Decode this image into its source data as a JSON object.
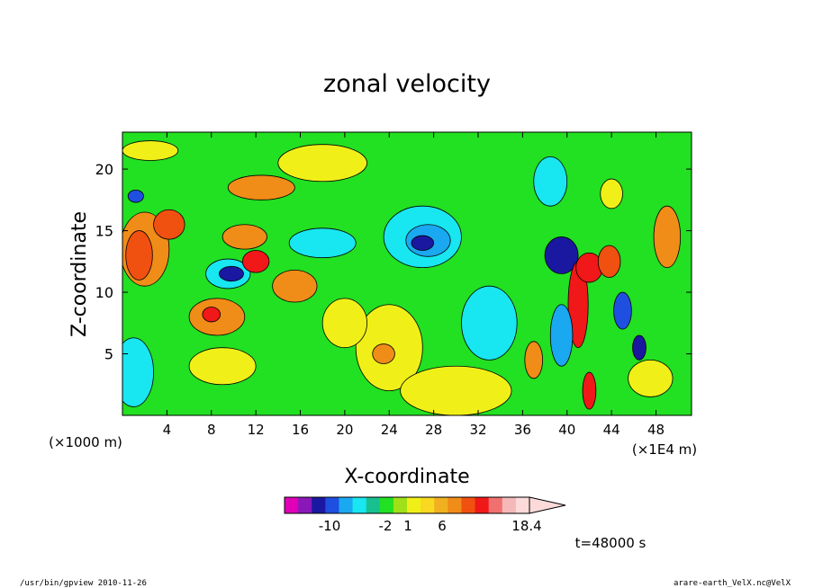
{
  "chart_data": {
    "type": "heatmap",
    "title": "zonal velocity",
    "xlabel": "X-coordinate",
    "ylabel": "Z-coordinate",
    "x_unit_left": "(×1000 m)",
    "x_unit_right": "(×1E4 m)",
    "xlim": [
      0,
      51.2
    ],
    "ylim": [
      0,
      23
    ],
    "x_ticks": [
      4,
      8,
      12,
      16,
      20,
      24,
      28,
      32,
      36,
      40,
      44,
      48
    ],
    "y_ticks": [
      5,
      10,
      15,
      20
    ],
    "colorbar": {
      "colors": [
        "#e000b8",
        "#8a18b8",
        "#1a18a0",
        "#1f4fe0",
        "#1aa8f0",
        "#18e6f0",
        "#18c090",
        "#22e022",
        "#a0e018",
        "#f0f018",
        "#f8d820",
        "#f0b020",
        "#f08c18",
        "#f05010",
        "#f01818",
        "#f07070",
        "#f4b8b8",
        "#fcdada"
      ],
      "labels": [
        "-10",
        "-2",
        "1",
        "6",
        "18.4"
      ]
    },
    "time_label": "t=48000  s",
    "contour_field": {
      "background_level": 1,
      "blobs": [
        {
          "x": 2.0,
          "z": 13.5,
          "rx": 2.2,
          "rz": 3.0,
          "level": 4
        },
        {
          "x": 1.5,
          "z": 13.0,
          "rx": 1.2,
          "rz": 2.0,
          "level": 6
        },
        {
          "x": 4.2,
          "z": 15.5,
          "rx": 1.4,
          "rz": 1.2,
          "level": 6
        },
        {
          "x": 1.0,
          "z": 3.5,
          "rx": 1.8,
          "rz": 2.8,
          "level": -2
        },
        {
          "x": 1.2,
          "z": 17.8,
          "rx": 0.7,
          "rz": 0.5,
          "level": -6
        },
        {
          "x": 9.5,
          "z": 11.5,
          "rx": 2.0,
          "rz": 1.2,
          "level": -2
        },
        {
          "x": 9.8,
          "z": 11.5,
          "rx": 1.1,
          "rz": 0.6,
          "level": -8
        },
        {
          "x": 8.5,
          "z": 8.0,
          "rx": 2.5,
          "rz": 1.5,
          "level": 4
        },
        {
          "x": 8.0,
          "z": 8.2,
          "rx": 0.8,
          "rz": 0.6,
          "level": 8
        },
        {
          "x": 11.0,
          "z": 14.5,
          "rx": 2.0,
          "rz": 1.0,
          "level": 4
        },
        {
          "x": 12.0,
          "z": 12.5,
          "rx": 1.2,
          "rz": 0.9,
          "level": 8
        },
        {
          "x": 12.5,
          "z": 18.5,
          "rx": 3.0,
          "rz": 1.0,
          "level": 4
        },
        {
          "x": 18.0,
          "z": 14.0,
          "rx": 3.0,
          "rz": 1.2,
          "level": -2
        },
        {
          "x": 15.5,
          "z": 10.5,
          "rx": 2.0,
          "rz": 1.3,
          "level": 4
        },
        {
          "x": 9.0,
          "z": 4.0,
          "rx": 3.0,
          "rz": 1.5,
          "level": 2
        },
        {
          "x": 27.0,
          "z": 14.5,
          "rx": 3.5,
          "rz": 2.5,
          "level": -2
        },
        {
          "x": 27.5,
          "z": 14.2,
          "rx": 2.0,
          "rz": 1.3,
          "level": -4
        },
        {
          "x": 27.0,
          "z": 14.0,
          "rx": 1.0,
          "rz": 0.6,
          "level": -8
        },
        {
          "x": 33.0,
          "z": 7.5,
          "rx": 2.5,
          "rz": 3.0,
          "level": -2
        },
        {
          "x": 24.0,
          "z": 5.5,
          "rx": 3.0,
          "rz": 3.5,
          "level": 2
        },
        {
          "x": 23.5,
          "z": 5.0,
          "rx": 1.0,
          "rz": 0.8,
          "level": 4
        },
        {
          "x": 30.0,
          "z": 2.0,
          "rx": 5.0,
          "rz": 2.0,
          "level": 2
        },
        {
          "x": 39.5,
          "z": 13.0,
          "rx": 1.5,
          "rz": 1.5,
          "level": -8
        },
        {
          "x": 41.0,
          "z": 9.0,
          "rx": 0.9,
          "rz": 3.5,
          "level": 8
        },
        {
          "x": 42.0,
          "z": 12.0,
          "rx": 1.2,
          "rz": 1.2,
          "level": 8
        },
        {
          "x": 43.8,
          "z": 12.5,
          "rx": 1.0,
          "rz": 1.3,
          "level": 6
        },
        {
          "x": 45.0,
          "z": 8.5,
          "rx": 0.8,
          "rz": 1.5,
          "level": -6
        },
        {
          "x": 46.5,
          "z": 5.5,
          "rx": 0.6,
          "rz": 1.0,
          "level": -8
        },
        {
          "x": 49.0,
          "z": 14.5,
          "rx": 1.2,
          "rz": 2.5,
          "level": 4
        },
        {
          "x": 37.0,
          "z": 4.5,
          "rx": 0.8,
          "rz": 1.5,
          "level": 4
        },
        {
          "x": 39.5,
          "z": 6.5,
          "rx": 1.0,
          "rz": 2.5,
          "level": -4
        },
        {
          "x": 42.0,
          "z": 2.0,
          "rx": 0.6,
          "rz": 1.5,
          "level": 8
        },
        {
          "x": 38.5,
          "z": 19.0,
          "rx": 1.5,
          "rz": 2.0,
          "level": -2
        },
        {
          "x": 44.0,
          "z": 18.0,
          "rx": 1.0,
          "rz": 1.2,
          "level": 2
        },
        {
          "x": 47.5,
          "z": 3.0,
          "rx": 2.0,
          "rz": 1.5,
          "level": 2
        },
        {
          "x": 2.5,
          "z": 21.5,
          "rx": 2.5,
          "rz": 0.8,
          "level": 2
        },
        {
          "x": 18.0,
          "z": 20.5,
          "rx": 4.0,
          "rz": 1.5,
          "level": 2
        },
        {
          "x": 20.0,
          "z": 7.5,
          "rx": 2.0,
          "rz": 2.0,
          "level": 2
        }
      ]
    }
  },
  "footer": {
    "left": "/usr/bin/gpview   2010-11-26",
    "right": "arare-earth_VelX.nc@VelX"
  }
}
